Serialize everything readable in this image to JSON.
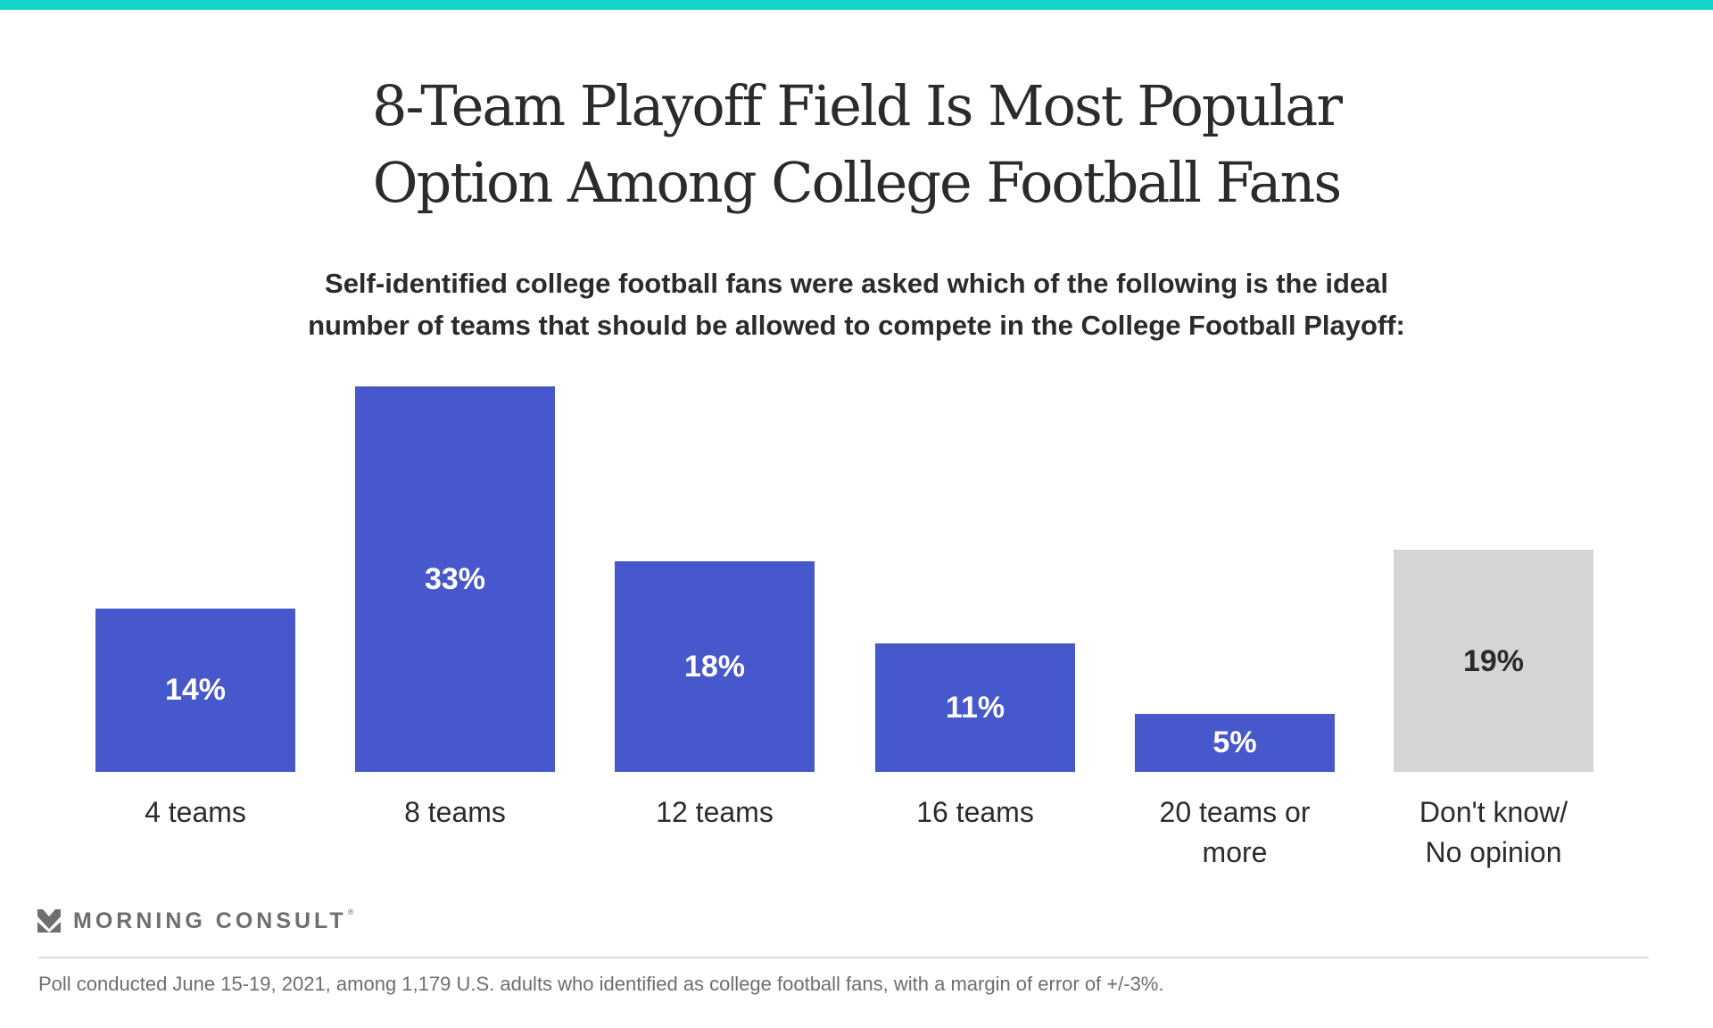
{
  "header": {
    "title_lines": [
      "8-Team Playoff Field Is Most Popular",
      "Option Among College Football Fans"
    ],
    "subtitle_lines": [
      "Self-identified college football fans were asked which of the following is the ideal",
      "number of teams that should be allowed to compete in the College Football Playoff:"
    ]
  },
  "colors": {
    "accent_bar": "#10d6cc",
    "primary_bar": "#4658cc",
    "neutral_bar": "#d5d5d5",
    "text": "#2b2b2b",
    "muted": "#6e6e6e"
  },
  "chart_data": {
    "type": "bar",
    "title": "8-Team Playoff Field Is Most Popular Option Among College Football Fans",
    "xlabel": "",
    "ylabel": "",
    "ylim": [
      0,
      35
    ],
    "grid": false,
    "categories": [
      "4 teams",
      "8 teams",
      "12 teams",
      "16 teams",
      "20 teams or more",
      "Don't know/ No opinion"
    ],
    "category_lines": [
      [
        "4 teams"
      ],
      [
        "8 teams"
      ],
      [
        "12 teams"
      ],
      [
        "16 teams"
      ],
      [
        "20 teams or",
        "more"
      ],
      [
        "Don't know/",
        "No opinion"
      ]
    ],
    "values": [
      14,
      33,
      18,
      11,
      5,
      19
    ],
    "value_labels": [
      "14%",
      "33%",
      "18%",
      "11%",
      "5%",
      "19%"
    ],
    "bar_colors": [
      "#4658cc",
      "#4658cc",
      "#4658cc",
      "#4658cc",
      "#4658cc",
      "#d5d5d5"
    ],
    "label_colors": [
      "#ffffff",
      "#ffffff",
      "#ffffff",
      "#ffffff",
      "#ffffff",
      "#2b2b2b"
    ]
  },
  "branding": {
    "logo_text": "MORNING CONSULT",
    "logo_mark": "®",
    "logo_icon": "morning-consult-chevron-icon"
  },
  "footer": {
    "note": "Poll conducted June 15-19, 2021, among 1,179 U.S. adults who identified as college football fans, with a margin of error of +/-3%."
  }
}
